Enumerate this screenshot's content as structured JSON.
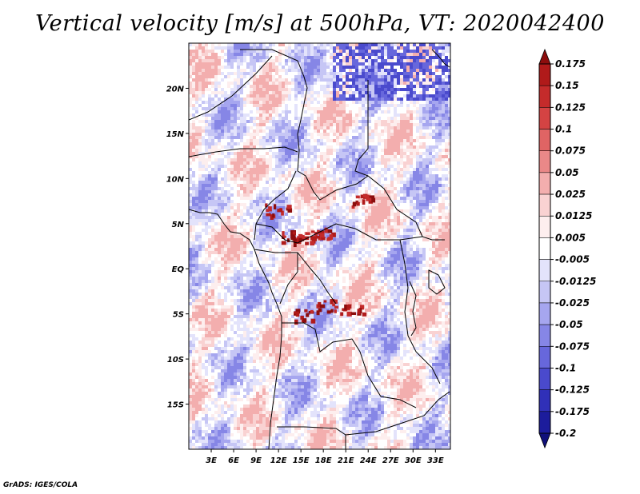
{
  "title": "Vertical velocity [m/s] at 500hPa, VT: 2020042400",
  "footer": "GrADS: IGES/COLA",
  "chart_data": {
    "type": "heatmap",
    "title": "Vertical velocity [m/s] at 500hPa, VT: 2020042400",
    "variable": "Vertical velocity",
    "units": "m/s",
    "level": "500hPa",
    "valid_time": "2020042400",
    "x_range": [
      0,
      35
    ],
    "y_range": [
      -20,
      25
    ],
    "x_ticks": [
      3,
      6,
      9,
      12,
      15,
      18,
      21,
      24,
      27,
      30,
      33
    ],
    "x_tick_labels": [
      "3E",
      "6E",
      "9E",
      "12E",
      "15E",
      "18E",
      "21E",
      "24E",
      "27E",
      "30E",
      "33E"
    ],
    "y_ticks": [
      20,
      15,
      10,
      5,
      0,
      -5,
      -10,
      -15
    ],
    "y_tick_labels": [
      "20N",
      "15N",
      "10N",
      "5N",
      "EQ",
      "5S",
      "10S",
      "15S"
    ],
    "colorbar": {
      "levels": [
        "0.175",
        "0.15",
        "0.125",
        "0.1",
        "0.075",
        "0.05",
        "0.025",
        "0.0125",
        "0.005",
        "-0.005",
        "-0.0125",
        "-0.025",
        "-0.05",
        "-0.075",
        "-0.1",
        "-0.125",
        "-0.175",
        "-0.2"
      ],
      "colors": [
        "#8c0d0d",
        "#b01a1a",
        "#c42b2b",
        "#d44343",
        "#e06464",
        "#ea8888",
        "#f3aeae",
        "#f9d2d2",
        "#fdeeee",
        "#ffffff",
        "#e3e3fb",
        "#c6c6f5",
        "#a6a6ef",
        "#8686e6",
        "#6767dc",
        "#4a4acd",
        "#3030b8",
        "#1c1c9c",
        "#10107a"
      ]
    }
  }
}
